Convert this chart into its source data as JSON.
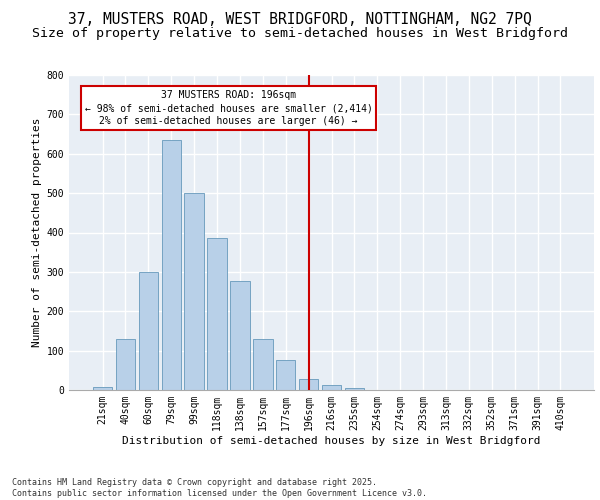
{
  "title_line1": "37, MUSTERS ROAD, WEST BRIDGFORD, NOTTINGHAM, NG2 7PQ",
  "title_line2": "Size of property relative to semi-detached houses in West Bridgford",
  "xlabel": "Distribution of semi-detached houses by size in West Bridgford",
  "ylabel": "Number of semi-detached properties",
  "footer": "Contains HM Land Registry data © Crown copyright and database right 2025.\nContains public sector information licensed under the Open Government Licence v3.0.",
  "categories": [
    "21sqm",
    "40sqm",
    "60sqm",
    "79sqm",
    "99sqm",
    "118sqm",
    "138sqm",
    "157sqm",
    "177sqm",
    "196sqm",
    "216sqm",
    "235sqm",
    "254sqm",
    "274sqm",
    "293sqm",
    "313sqm",
    "332sqm",
    "352sqm",
    "371sqm",
    "391sqm",
    "410sqm"
  ],
  "values": [
    8,
    130,
    300,
    635,
    500,
    385,
    278,
    130,
    75,
    28,
    13,
    6,
    0,
    0,
    0,
    0,
    0,
    0,
    0,
    0,
    0
  ],
  "bar_color": "#b8d0e8",
  "bar_edge_color": "#6699bb",
  "highlight_index": 9,
  "highlight_line_color": "#cc0000",
  "annotation_text": "37 MUSTERS ROAD: 196sqm\n← 98% of semi-detached houses are smaller (2,414)\n2% of semi-detached houses are larger (46) →",
  "annotation_box_color": "#cc0000",
  "ylim": [
    0,
    800
  ],
  "yticks": [
    0,
    100,
    200,
    300,
    400,
    500,
    600,
    700,
    800
  ],
  "bg_color": "#e8eef5",
  "grid_color": "#ffffff",
  "title_fontsize": 10.5,
  "subtitle_fontsize": 9.5,
  "axis_label_fontsize": 8,
  "tick_fontsize": 7,
  "footer_fontsize": 6,
  "annotation_fontsize": 7
}
